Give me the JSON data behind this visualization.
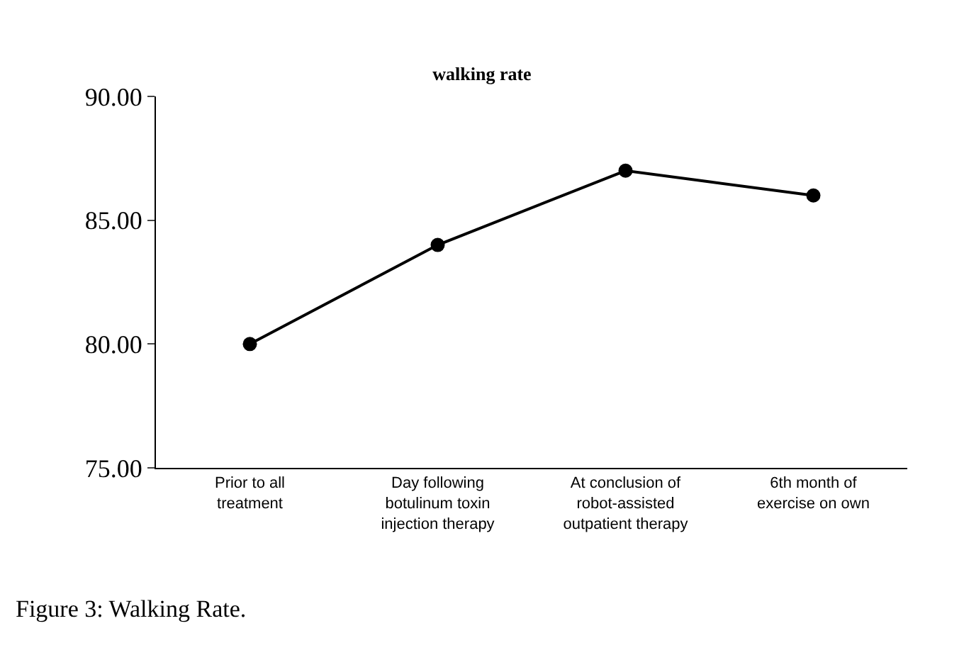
{
  "chart_data": {
    "type": "line",
    "title": "walking rate",
    "categories": [
      "Prior to all treatment",
      "Day following botulinum toxin injection therapy",
      "At conclusion of robot-assisted outpatient therapy",
      "6th month of exercise on own"
    ],
    "series": [
      {
        "color": "#000000",
        "values": [
          80,
          84,
          87,
          86
        ]
      }
    ],
    "ylim": [
      75,
      90
    ],
    "yticks": [
      {
        "value": 75,
        "label": "75.00"
      },
      {
        "value": 80,
        "label": "80.00"
      },
      {
        "value": 85,
        "label": "85.00"
      },
      {
        "value": 90,
        "label": "90.00"
      }
    ],
    "marker": "circle",
    "line_style": "solid",
    "annotations": [
      "Figure 3: Walking Rate."
    ]
  }
}
